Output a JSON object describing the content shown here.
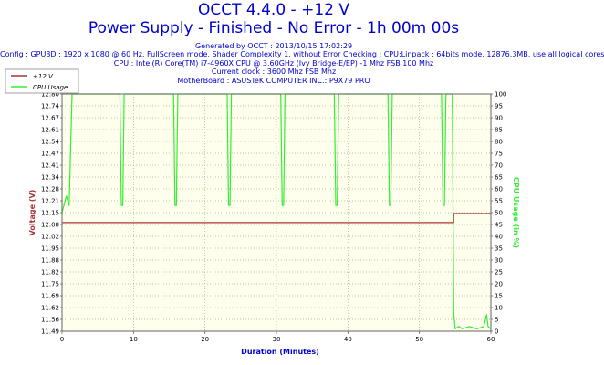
{
  "header": {
    "title": "OCCT 4.4.0 - +12 V",
    "subtitle": "Power Supply - Finished - No Error - 1h 00m 00s",
    "info": [
      "Generated by OCCT : 2013/10/15 17:02:29",
      "Config : GPU3D : 1920 x 1080 @ 60 Hz, FullScreen mode, Shader Complexity 1, without Error Checking ; CPU:Linpack : 64bits mode, 12876.3MB, use all logical cores",
      "CPU : Intel(R) Core(TM) i7-4960X CPU @ 3.60GHz (Ivy Bridge-E/EP) -1 Mhz FSB 100 Mhz",
      "Current clock : 3600 Mhz FSB  Mhz",
      "MotherBoard : ASUSTeK COMPUTER INC.: P9X79 PRO"
    ]
  },
  "colors": {
    "voltage": "#aa3333",
    "cpu": "#33ee33",
    "plot_bg": "#ffffee",
    "grid": "#bbaa88",
    "text_blue": "#0000cc",
    "left_axis": "#aa3333",
    "right_axis": "#33ee33"
  },
  "chart_data": {
    "type": "line",
    "xlabel": "Duration (Minutes)",
    "ylabel": "Voltage (V)",
    "y2label": "CPU Usage (in %)",
    "xlim": [
      0,
      60
    ],
    "ylim": [
      11.49,
      12.8
    ],
    "y2lim": [
      0,
      100
    ],
    "xticks": [
      "0",
      "10",
      "20",
      "30",
      "40",
      "50",
      "60"
    ],
    "yticks": [
      "11.49",
      "11.56",
      "11.62",
      "11.69",
      "11.75",
      "11.82",
      "11.88",
      "11.95",
      "12.02",
      "12.08",
      "12.15",
      "12.21",
      "12.28",
      "12.34",
      "12.41",
      "12.47",
      "12.54",
      "12.61",
      "12.67",
      "12.74",
      "12.80"
    ],
    "y2ticks": [
      "0",
      "5",
      "10",
      "15",
      "20",
      "25",
      "30",
      "35",
      "40",
      "45",
      "50",
      "55",
      "60",
      "65",
      "70",
      "75",
      "80",
      "85",
      "90",
      "95",
      "100"
    ],
    "legend_position": "top-left",
    "grid": true,
    "series": [
      {
        "name": "+12 V",
        "axis": "left",
        "x": [
          0,
          0.5,
          1,
          54.8,
          54.8,
          60
        ],
        "values": [
          12.09,
          12.09,
          12.09,
          12.09,
          12.14,
          12.14
        ]
      },
      {
        "name": "CPU Usage",
        "axis": "right",
        "x": [
          0,
          0.6,
          1.0,
          1.4,
          1.6,
          8.1,
          8.3,
          8.5,
          8.7,
          15.6,
          15.8,
          16.0,
          16.2,
          23.1,
          23.3,
          23.5,
          23.7,
          30.6,
          30.8,
          31.0,
          31.2,
          38.1,
          38.3,
          38.5,
          38.7,
          45.6,
          45.8,
          46.0,
          46.2,
          53.1,
          53.3,
          53.5,
          53.7,
          54.6,
          54.8,
          55.0,
          55.5,
          56.0,
          57.0,
          58.0,
          59.0,
          59.4,
          59.6,
          60
        ],
        "values": [
          50,
          57,
          53,
          100,
          100,
          100,
          53,
          53,
          100,
          100,
          53,
          53,
          100,
          100,
          53,
          53,
          100,
          100,
          53,
          53,
          100,
          100,
          53,
          53,
          100,
          100,
          53,
          53,
          100,
          100,
          53,
          53,
          100,
          100,
          8,
          1,
          2,
          1,
          2,
          1,
          2,
          7,
          2,
          1
        ]
      }
    ]
  }
}
